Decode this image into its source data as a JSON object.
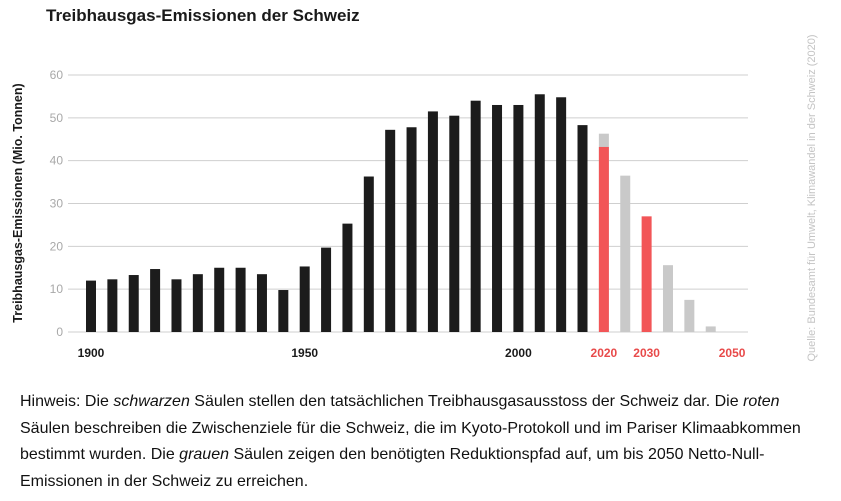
{
  "chart_data": {
    "type": "bar",
    "title": "Treibhausgas-Emissionen der Schweiz",
    "xlabel": "",
    "ylabel": "Treibhausgas-Emissionen (Mio. Tonnen)",
    "ylim": [
      0,
      60
    ],
    "yticks": [
      "0",
      "10",
      "20",
      "30",
      "40",
      "50",
      "60"
    ],
    "grid": true,
    "source": "Quelle: Bundesamt für Umwelt, Klimawandel in der Schweiz (2020)",
    "x_tick_labels": [
      {
        "label": "1900",
        "year": 1900,
        "color": "#1a1a1a"
      },
      {
        "label": "1950",
        "year": 1950,
        "color": "#1a1a1a"
      },
      {
        "label": "2000",
        "year": 2000,
        "color": "#1a1a1a"
      },
      {
        "label": "2020",
        "year": 2020,
        "color": "#e84a4a"
      },
      {
        "label": "2030",
        "year": 2030,
        "color": "#e84a4a"
      },
      {
        "label": "2050",
        "year": 2050,
        "color": "#e84a4a"
      }
    ],
    "colors": {
      "actual": "#1c1c1c",
      "target": "#f25557",
      "path": "#c9c9c9"
    },
    "series": [
      {
        "key": "actual",
        "points": [
          {
            "year": 1900,
            "value": 12.0
          },
          {
            "year": 1905,
            "value": 12.3
          },
          {
            "year": 1910,
            "value": 13.3
          },
          {
            "year": 1915,
            "value": 14.7
          },
          {
            "year": 1920,
            "value": 12.3
          },
          {
            "year": 1925,
            "value": 13.5
          },
          {
            "year": 1930,
            "value": 15.0
          },
          {
            "year": 1935,
            "value": 15.0
          },
          {
            "year": 1940,
            "value": 13.5
          },
          {
            "year": 1945,
            "value": 9.8
          },
          {
            "year": 1950,
            "value": 15.3
          },
          {
            "year": 1955,
            "value": 19.7
          },
          {
            "year": 1960,
            "value": 25.3
          },
          {
            "year": 1965,
            "value": 36.3
          },
          {
            "year": 1970,
            "value": 47.2
          },
          {
            "year": 1975,
            "value": 47.8
          },
          {
            "year": 1980,
            "value": 51.5
          },
          {
            "year": 1985,
            "value": 50.5
          },
          {
            "year": 1990,
            "value": 54.0
          },
          {
            "year": 1995,
            "value": 53.0
          },
          {
            "year": 2000,
            "value": 53.0
          },
          {
            "year": 2005,
            "value": 55.5
          },
          {
            "year": 2010,
            "value": 54.8
          },
          {
            "year": 2015,
            "value": 48.3
          }
        ]
      },
      {
        "key": "path",
        "points": [
          {
            "year": 2020,
            "value": 46.3
          },
          {
            "year": 2025,
            "value": 36.5
          },
          {
            "year": 2035,
            "value": 15.6
          },
          {
            "year": 2040,
            "value": 7.5
          },
          {
            "year": 2045,
            "value": 1.3
          }
        ]
      },
      {
        "key": "target",
        "points": [
          {
            "year": 2020,
            "value": 43.2
          },
          {
            "year": 2030,
            "value": 27.0
          }
        ]
      }
    ]
  },
  "note": {
    "p1": "Hinweis: Die ",
    "em1": "schwarzen",
    "p2": " Säulen stellen den tatsächlichen Treibhausgasausstoss der Schweiz dar. Die ",
    "em2": "roten",
    "p3": " Säulen beschreiben die Zwischenziele für die Schweiz, die im Kyoto-Protokoll und im Pariser Klimaabkommen bestimmt wurden. Die ",
    "em3": "grauen",
    "p4": " Säulen zeigen den benötigten Reduktionspfad auf, um bis 2050 Netto-Null-Emissionen in der Schweiz zu erreichen."
  }
}
